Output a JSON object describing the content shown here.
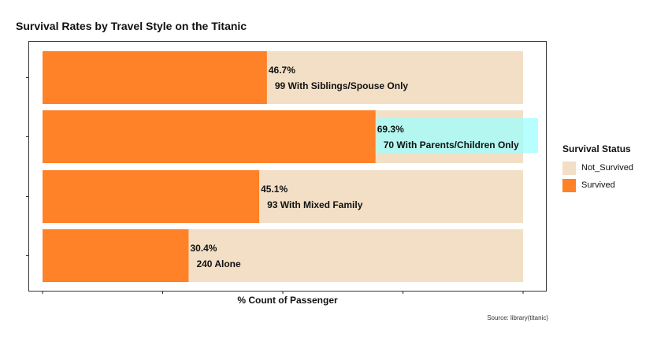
{
  "chart_data": {
    "type": "bar",
    "orientation": "horizontal",
    "stacked": true,
    "title": "Survival Rates by Travel Style on the Titanic",
    "xlabel": "% Count of Passenger",
    "ylabel": "",
    "xlim": [
      0,
      100
    ],
    "categories": [
      "99 With Siblings/Spouse Only",
      "70 With Parents/Children Only",
      "93 With Mixed Family",
      "240 Alone"
    ],
    "series": [
      {
        "name": "Survived",
        "values": [
          46.7,
          69.3,
          45.1,
          30.4
        ]
      },
      {
        "name": "Not_Survived",
        "values": [
          53.3,
          30.7,
          54.9,
          69.6
        ]
      }
    ],
    "pct_labels": [
      "46.7%",
      "69.3%",
      "45.1%",
      "30.4%"
    ],
    "highlight_index": 1,
    "legend_title": "Survival Status",
    "legend_placement": "right",
    "grid": false,
    "source": "Source: library(titanic)",
    "colors": {
      "Survived": "#FF8228",
      "Not_Survived": "#F2DFC6",
      "highlight": "#9FFFFF"
    }
  }
}
